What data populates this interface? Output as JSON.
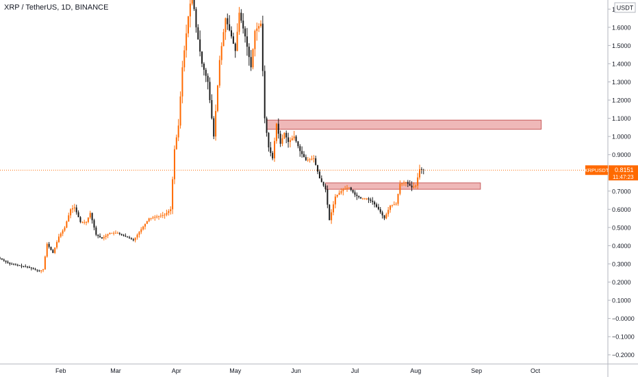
{
  "header": {
    "title": "XRP / TetherUS, 1D, BINANCE"
  },
  "price_scale": {
    "currency_label": "USDT"
  },
  "price_tag": {
    "symbol": "XRPUSDT",
    "price": "0.8151",
    "countdown": "11:47:23"
  },
  "colors": {
    "up": "#ff6a00",
    "down": "#1b1b1b",
    "zone_fill": "#efb8b8",
    "zone_border": "#c75b5b",
    "tag_bg": "#ff6a00",
    "price_line": "#ff6a00",
    "axis_text": "#131722",
    "axis_line": "#b2b5be"
  },
  "chart_data": {
    "type": "candlestick",
    "title": "XRP / TetherUS, 1D, BINANCE",
    "ylabel": "USDT",
    "ylim": [
      -0.25,
      1.75
    ],
    "y_ticks": [
      -0.2,
      -0.1,
      0.0,
      0.1,
      0.2,
      0.3,
      0.4,
      0.5,
      0.6,
      0.7,
      0.8,
      0.9,
      1.0,
      1.1,
      1.2,
      1.3,
      1.4,
      1.5,
      1.6,
      1.7
    ],
    "y_tick_labels": [
      "−0.2000",
      "−0.1000",
      "−0.0000",
      "0.1000",
      "0.2000",
      "0.3000",
      "0.4000",
      "0.5000",
      "0.6000",
      "0.7000",
      "0.8000",
      "0.9000",
      "1.0000",
      "1.1000",
      "1.2000",
      "1.3000",
      "1.4000",
      "1.5000",
      "1.6000",
      "1.7000"
    ],
    "x_tick_labels": [
      "Feb",
      "Mar",
      "Apr",
      "May",
      "Jun",
      "Jul",
      "Aug",
      "Sep",
      "Oct"
    ],
    "x_tick_days": [
      31,
      59,
      90,
      120,
      151,
      181,
      212,
      243,
      273
    ],
    "x_range_days": [
      0,
      310
    ],
    "last_price": 0.8151,
    "grid": false,
    "zones": [
      {
        "from_day": 136,
        "to_day": 276,
        "low": 1.04,
        "high": 1.09
      },
      {
        "from_day": 166,
        "to_day": 245,
        "low": 0.71,
        "high": 0.745
      }
    ],
    "anchors": [
      [
        0,
        0.33
      ],
      [
        5,
        0.3
      ],
      [
        10,
        0.29
      ],
      [
        15,
        0.28
      ],
      [
        20,
        0.26
      ],
      [
        22,
        0.27
      ],
      [
        24,
        0.41
      ],
      [
        27,
        0.36
      ],
      [
        30,
        0.45
      ],
      [
        33,
        0.5
      ],
      [
        36,
        0.6
      ],
      [
        38,
        0.61
      ],
      [
        41,
        0.53
      ],
      [
        44,
        0.53
      ],
      [
        46,
        0.58
      ],
      [
        49,
        0.46
      ],
      [
        52,
        0.44
      ],
      [
        56,
        0.47
      ],
      [
        60,
        0.47
      ],
      [
        64,
        0.45
      ],
      [
        68,
        0.43
      ],
      [
        72,
        0.49
      ],
      [
        76,
        0.55
      ],
      [
        80,
        0.56
      ],
      [
        84,
        0.57
      ],
      [
        87,
        0.6
      ],
      [
        89,
        0.93
      ],
      [
        91,
        1.06
      ],
      [
        93,
        1.38
      ],
      [
        96,
        1.66
      ],
      [
        98,
        1.8
      ],
      [
        100,
        1.6
      ],
      [
        103,
        1.4
      ],
      [
        106,
        1.3
      ],
      [
        109,
        1.0
      ],
      [
        112,
        1.42
      ],
      [
        115,
        1.65
      ],
      [
        118,
        1.55
      ],
      [
        120,
        1.47
      ],
      [
        122,
        1.68
      ],
      [
        125,
        1.55
      ],
      [
        128,
        1.38
      ],
      [
        130,
        1.58
      ],
      [
        133,
        1.62
      ],
      [
        135,
        1.1
      ],
      [
        137,
        0.94
      ],
      [
        139,
        0.88
      ],
      [
        141,
        1.07
      ],
      [
        143,
        0.96
      ],
      [
        145,
        1.02
      ],
      [
        147,
        0.97
      ],
      [
        150,
        1.0
      ],
      [
        153,
        0.92
      ],
      [
        156,
        0.87
      ],
      [
        160,
        0.88
      ],
      [
        163,
        0.77
      ],
      [
        166,
        0.71
      ],
      [
        168,
        0.54
      ],
      [
        171,
        0.67
      ],
      [
        175,
        0.71
      ],
      [
        178,
        0.72
      ],
      [
        181,
        0.68
      ],
      [
        184,
        0.66
      ],
      [
        187,
        0.66
      ],
      [
        190,
        0.64
      ],
      [
        193,
        0.6
      ],
      [
        196,
        0.55
      ],
      [
        199,
        0.62
      ],
      [
        202,
        0.63
      ],
      [
        204,
        0.74
      ],
      [
        207,
        0.75
      ],
      [
        210,
        0.72
      ],
      [
        212,
        0.73
      ],
      [
        214,
        0.82
      ],
      [
        216,
        0.8151
      ]
    ]
  }
}
